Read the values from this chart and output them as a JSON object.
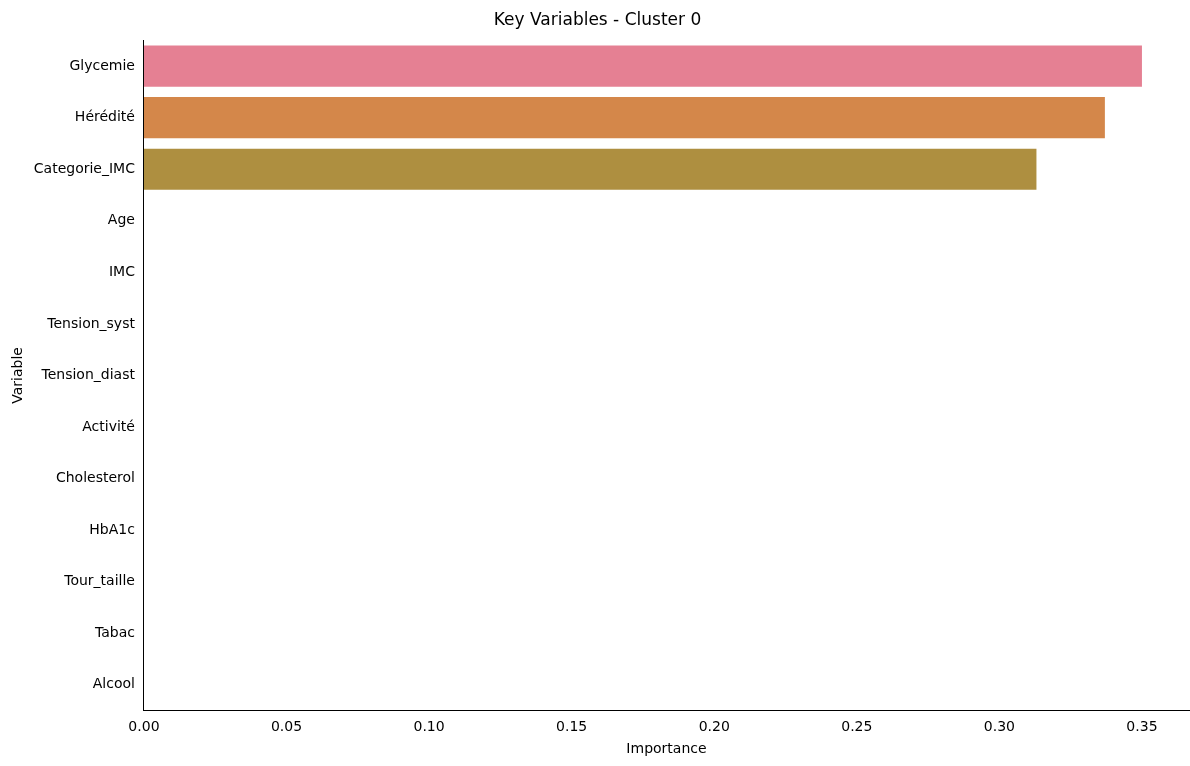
{
  "chart_data": {
    "type": "bar",
    "orientation": "horizontal",
    "title": "Key Variables - Cluster 0",
    "xlabel": "Importance",
    "ylabel": "Variable",
    "categories": [
      "Glycemie",
      "Hérédité",
      "Categorie_IMC",
      "Age",
      "IMC",
      "Tension_syst",
      "Tension_diast",
      "Activité",
      "Cholesterol",
      "HbA1c",
      "Tour_taille",
      "Tabac",
      "Alcool"
    ],
    "values": [
      0.35,
      0.337,
      0.313,
      0,
      0,
      0,
      0,
      0,
      0,
      0,
      0,
      0,
      0
    ],
    "colors": [
      "#e58093",
      "#d4874a",
      "#ae8f40",
      "#939a3f",
      "#6ea541",
      "#48a874",
      "#4aa69a",
      "#4da4b3",
      "#52a1cb",
      "#7f98e3",
      "#b08be3",
      "#d57ed9",
      "#e17bb5"
    ],
    "xlim": [
      0,
      0.3665
    ],
    "xticks": [
      {
        "value": 0,
        "label": "0.00"
      },
      {
        "value": 0.05,
        "label": "0.05"
      },
      {
        "value": 0.1,
        "label": "0.10"
      },
      {
        "value": 0.15,
        "label": "0.15"
      },
      {
        "value": 0.2,
        "label": "0.20"
      },
      {
        "value": 0.25,
        "label": "0.25"
      },
      {
        "value": 0.3,
        "label": "0.30"
      },
      {
        "value": 0.35,
        "label": "0.35"
      }
    ],
    "grid": false,
    "legend": false
  }
}
